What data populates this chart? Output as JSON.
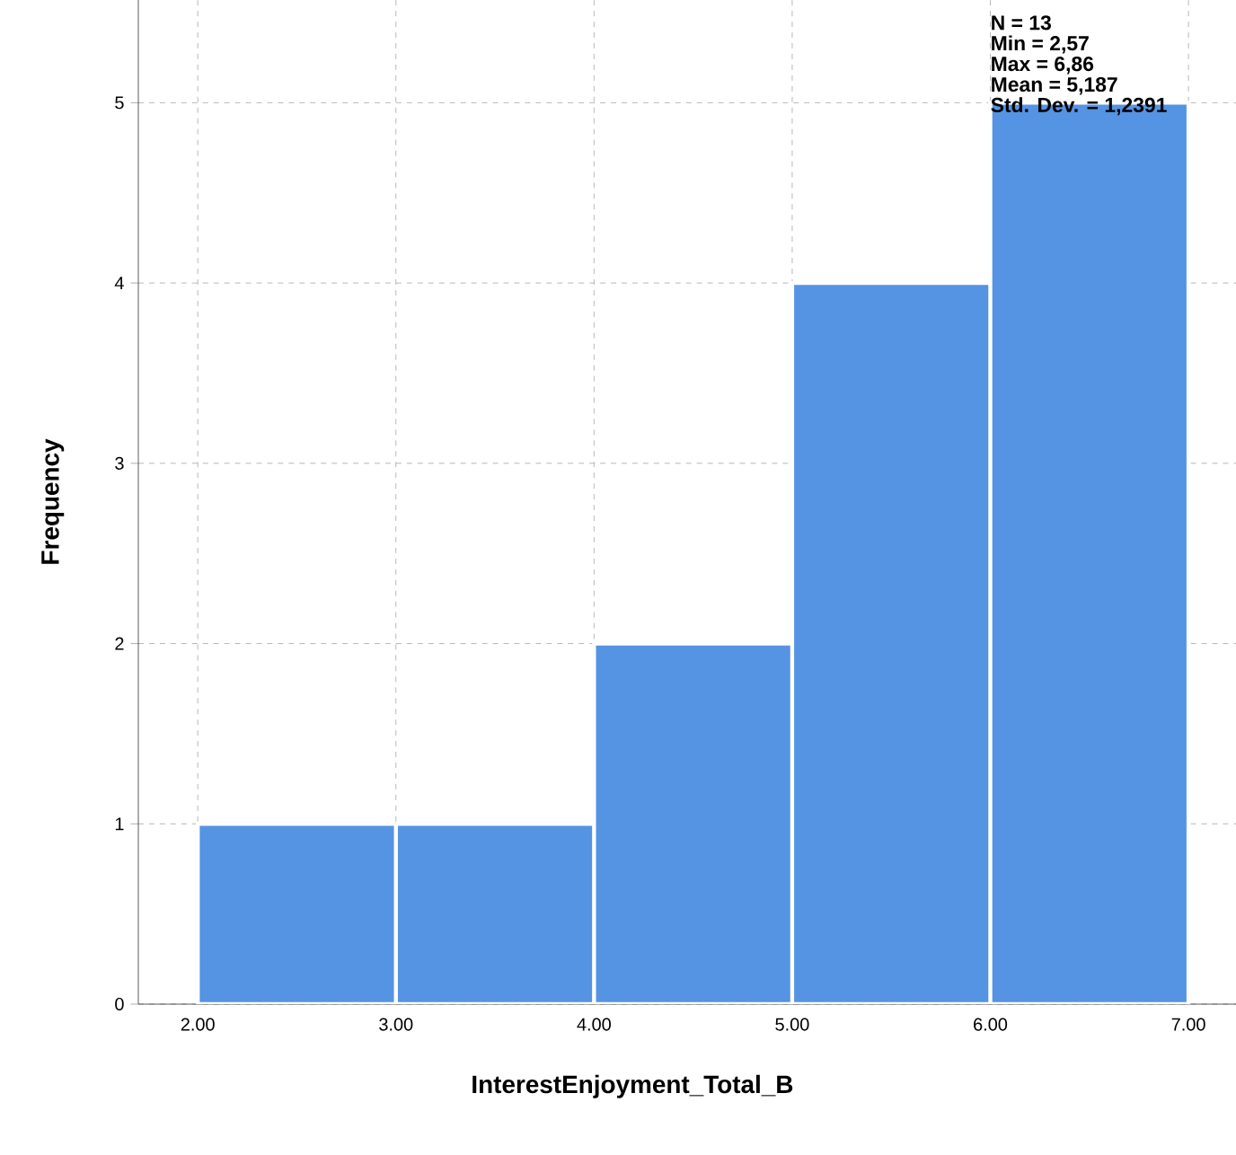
{
  "chart_data": {
    "type": "histogram",
    "xlabel": "InterestEnjoyment_Total_B",
    "ylabel": "Frequency",
    "bins": [
      2,
      3,
      4,
      5,
      6,
      7
    ],
    "values": [
      1,
      1,
      2,
      4,
      5
    ],
    "color": "#5593e3",
    "xlim": [
      1.7,
      7.24
    ],
    "ylim": [
      0,
      5.57
    ],
    "xticks": [
      {
        "value": 2,
        "label": "2.00"
      },
      {
        "value": 3,
        "label": "3.00"
      },
      {
        "value": 4,
        "label": "4.00"
      },
      {
        "value": 5,
        "label": "5.00"
      },
      {
        "value": 6,
        "label": "6.00"
      },
      {
        "value": 7,
        "label": "7.00"
      }
    ],
    "yticks": [
      0,
      1,
      2,
      3,
      4,
      5
    ],
    "grid": true,
    "annotations": [
      "N = 13",
      "Min = 2,57",
      "Max = 6,86",
      "Mean = 5,187",
      "Std. Dev. = 1,2391"
    ]
  }
}
